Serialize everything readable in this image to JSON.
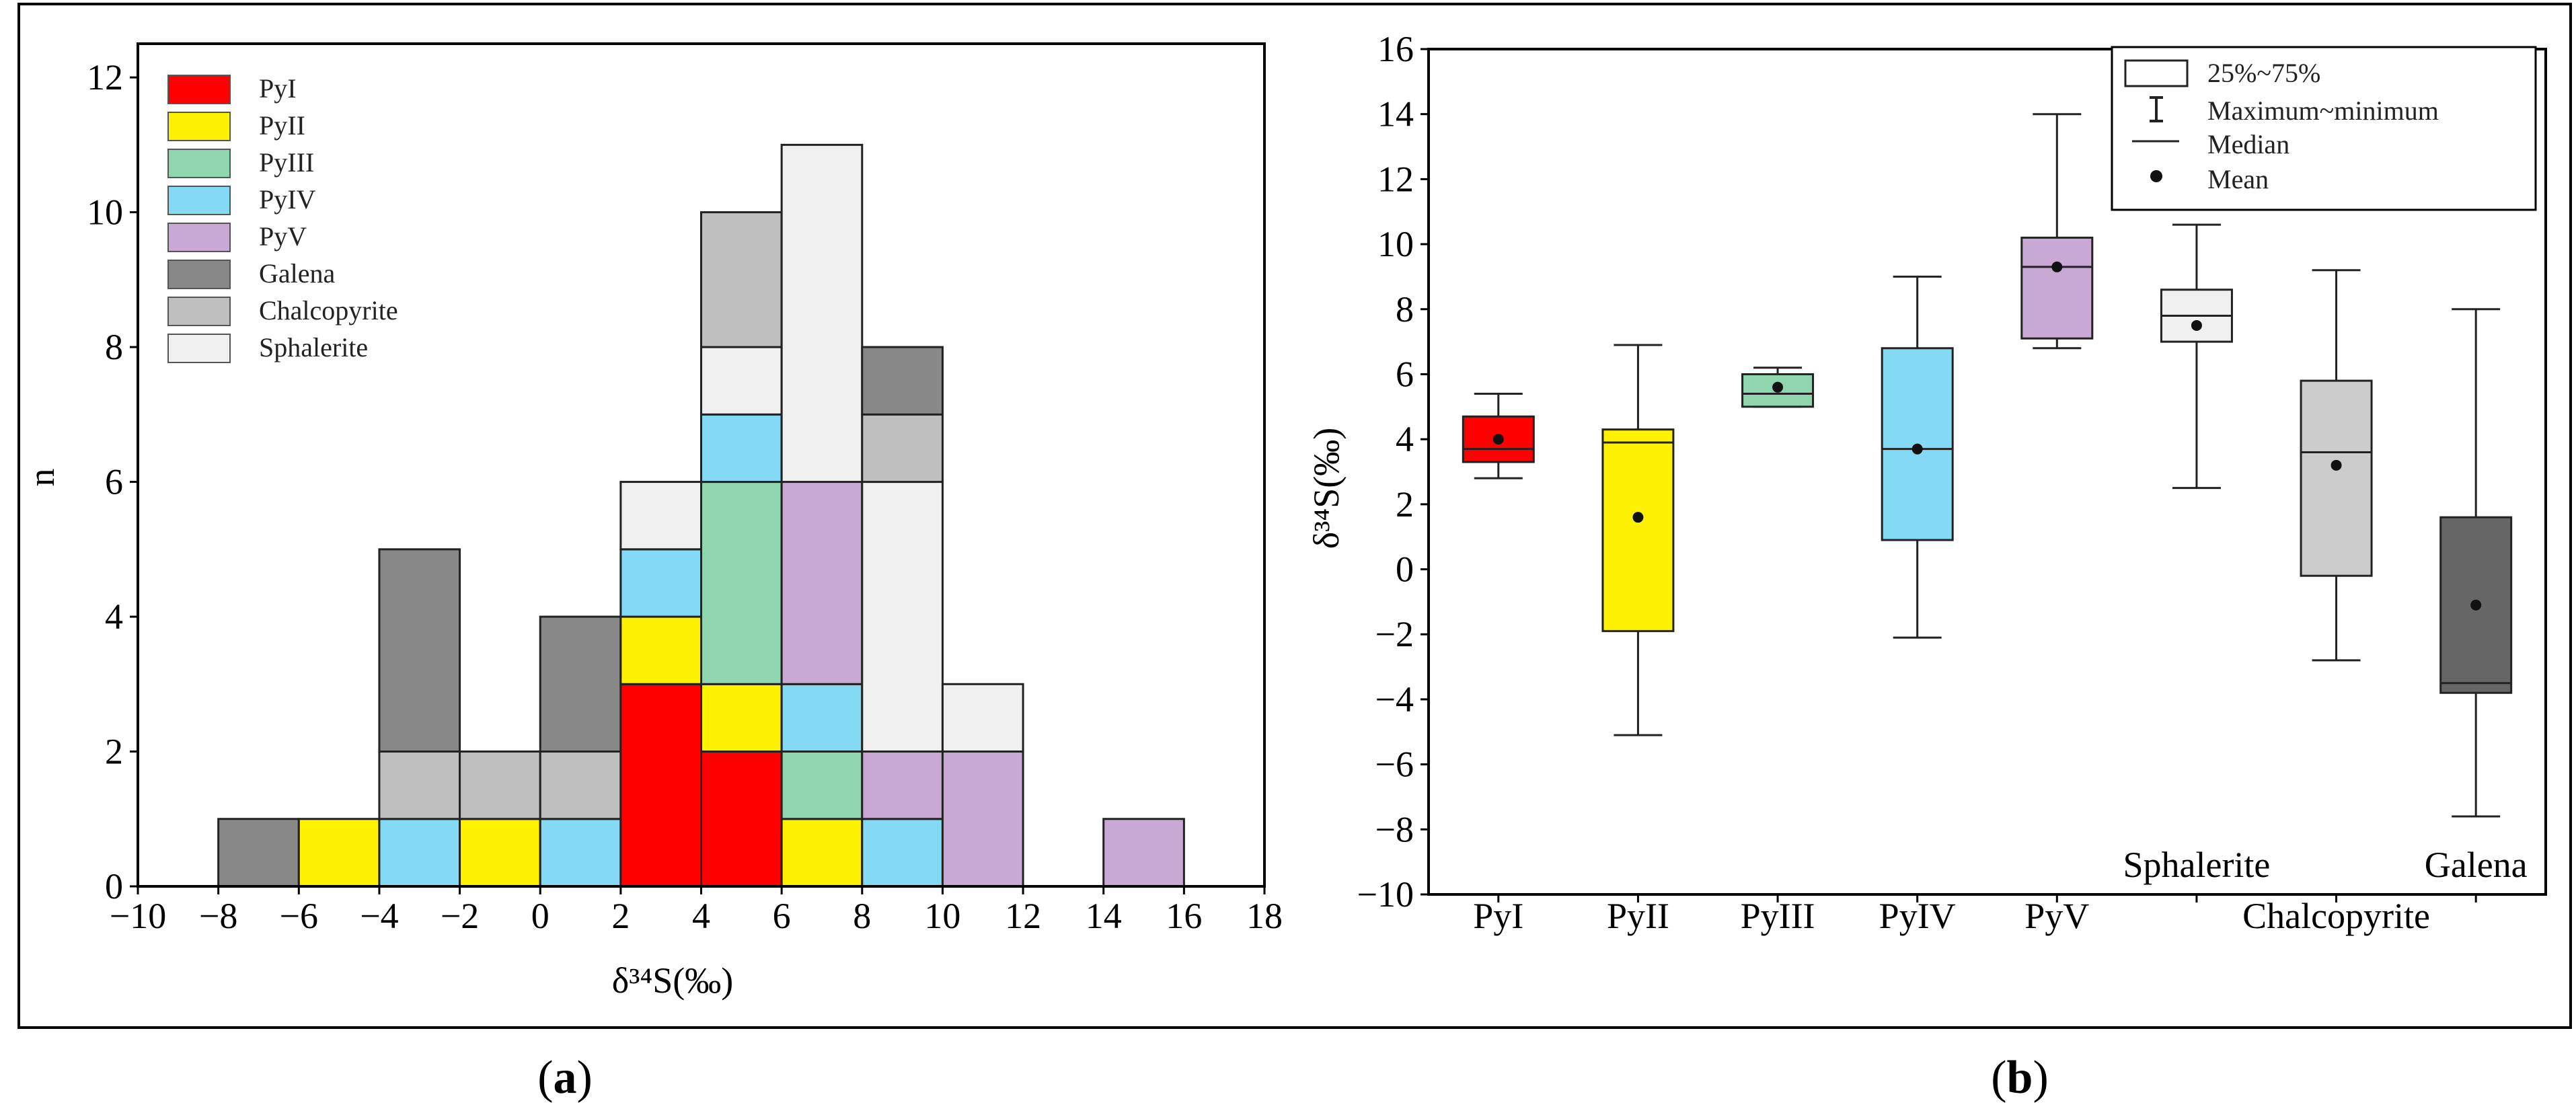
{
  "panel_labels": {
    "a": "a",
    "b": "b"
  },
  "colors": {
    "PyI": "#ff0000",
    "PyII": "#fff200",
    "PyIII": "#8fd6ae",
    "PyIV": "#84d9f5",
    "PyV": "#c9a8d4",
    "Galena": "#888888",
    "Chalcopyrite": "#bfbfbf",
    "Sphalerite": "#f0f0f0",
    "Galena_box": "#666666",
    "Chalcopyrite_box": "#cccccc",
    "Sphalerite_box": "#f0f0f0"
  },
  "chart_data": [
    {
      "type": "bar",
      "subtype": "stacked-histogram",
      "title": "",
      "xlabel": "δ³⁴S(‰)",
      "ylabel": "n",
      "xlim": [
        -10,
        18
      ],
      "ylim": [
        0,
        12.5
      ],
      "xticks": [
        -10,
        -8,
        -6,
        -4,
        -2,
        0,
        2,
        4,
        6,
        8,
        10,
        12,
        14,
        16,
        18
      ],
      "yticks": [
        0,
        2,
        4,
        6,
        8,
        10,
        12
      ],
      "legend_position": "top-left",
      "legend": [
        "PyI",
        "PyII",
        "PyIII",
        "PyIV",
        "PyV",
        "Galena",
        "Chalcopyrite",
        "Sphalerite"
      ],
      "bins": [
        {
          "x0": -8,
          "x1": -6,
          "stack": [
            {
              "cat": "Galena",
              "n": 1
            }
          ]
        },
        {
          "x0": -6,
          "x1": -4,
          "stack": [
            {
              "cat": "PyII",
              "n": 1
            }
          ]
        },
        {
          "x0": -4,
          "x1": -2,
          "stack": [
            {
              "cat": "PyIV",
              "n": 1
            },
            {
              "cat": "Chalcopyrite",
              "n": 1
            },
            {
              "cat": "Galena",
              "n": 3
            }
          ]
        },
        {
          "x0": -2,
          "x1": 0,
          "stack": [
            {
              "cat": "PyII",
              "n": 1
            },
            {
              "cat": "Chalcopyrite",
              "n": 1
            }
          ]
        },
        {
          "x0": 0,
          "x1": 2,
          "stack": [
            {
              "cat": "PyIV",
              "n": 1
            },
            {
              "cat": "Chalcopyrite",
              "n": 1
            },
            {
              "cat": "Galena",
              "n": 2
            }
          ]
        },
        {
          "x0": 2,
          "x1": 4,
          "stack": [
            {
              "cat": "PyI",
              "n": 3
            },
            {
              "cat": "PyII",
              "n": 1
            },
            {
              "cat": "PyIV",
              "n": 1
            },
            {
              "cat": "Sphalerite",
              "n": 1
            }
          ]
        },
        {
          "x0": 4,
          "x1": 6,
          "stack": [
            {
              "cat": "PyI",
              "n": 2
            },
            {
              "cat": "PyII",
              "n": 1
            },
            {
              "cat": "PyIII",
              "n": 3
            },
            {
              "cat": "PyIV",
              "n": 1
            },
            {
              "cat": "Sphalerite",
              "n": 1
            },
            {
              "cat": "Chalcopyrite",
              "n": 2
            }
          ]
        },
        {
          "x0": 6,
          "x1": 8,
          "stack": [
            {
              "cat": "PyII",
              "n": 1
            },
            {
              "cat": "PyIII",
              "n": 1
            },
            {
              "cat": "PyIV",
              "n": 1
            },
            {
              "cat": "PyV",
              "n": 3
            },
            {
              "cat": "Sphalerite",
              "n": 5
            }
          ]
        },
        {
          "x0": 8,
          "x1": 10,
          "stack": [
            {
              "cat": "PyIV",
              "n": 1
            },
            {
              "cat": "PyV",
              "n": 1
            },
            {
              "cat": "Sphalerite",
              "n": 4
            },
            {
              "cat": "Chalcopyrite",
              "n": 1
            },
            {
              "cat": "Galena",
              "n": 1
            }
          ]
        },
        {
          "x0": 10,
          "x1": 12,
          "stack": [
            {
              "cat": "PyV",
              "n": 2
            },
            {
              "cat": "Sphalerite",
              "n": 1
            }
          ]
        },
        {
          "x0": 14,
          "x1": 16,
          "stack": [
            {
              "cat": "PyV",
              "n": 1
            }
          ]
        }
      ]
    },
    {
      "type": "box",
      "title": "",
      "xlabel": "",
      "ylabel": "δ³⁴S(‰)",
      "ylim": [
        -10,
        16
      ],
      "yticks": [
        -10,
        -8,
        -6,
        -4,
        -2,
        0,
        2,
        4,
        6,
        8,
        10,
        12,
        14,
        16
      ],
      "legend_position": "top-right",
      "legend": [
        "25%~75%",
        "Maximum~minimum",
        "Median",
        "Mean"
      ],
      "boxes": [
        {
          "name": "PyI",
          "label_pos": "bottom",
          "min": 2.8,
          "q1": 3.3,
          "median": 3.7,
          "q3": 4.7,
          "max": 5.4,
          "mean": 4.0,
          "color": "#ff0000"
        },
        {
          "name": "PyII",
          "label_pos": "bottom",
          "min": -5.1,
          "q1": -1.9,
          "median": 3.9,
          "q3": 4.3,
          "max": 6.9,
          "mean": 1.6,
          "color": "#fff200"
        },
        {
          "name": "PyIII",
          "label_pos": "bottom",
          "min": 5.0,
          "q1": 5.0,
          "median": 5.4,
          "q3": 6.0,
          "max": 6.2,
          "mean": 5.6,
          "color": "#8fd6ae"
        },
        {
          "name": "PyIV",
          "label_pos": "bottom",
          "min": -2.1,
          "q1": 0.9,
          "median": 3.7,
          "q3": 6.8,
          "max": 9.0,
          "mean": 3.7,
          "color": "#84d9f5"
        },
        {
          "name": "PyV",
          "label_pos": "bottom",
          "min": 6.8,
          "q1": 7.1,
          "median": 9.3,
          "q3": 10.2,
          "max": 14.0,
          "mean": 9.3,
          "color": "#c9a8d4"
        },
        {
          "name": "Sphalerite",
          "label_pos": "inside",
          "min": 2.5,
          "q1": 7.0,
          "median": 7.8,
          "q3": 8.6,
          "max": 10.6,
          "mean": 7.5,
          "color": "#f0f0f0"
        },
        {
          "name": "Chalcopyrite",
          "label_pos": "bottom",
          "min": -2.8,
          "q1": -0.2,
          "median": 3.6,
          "q3": 5.8,
          "max": 9.2,
          "mean": 3.2,
          "color": "#cccccc"
        },
        {
          "name": "Galena",
          "label_pos": "inside",
          "min": -7.6,
          "q1": -3.8,
          "median": -3.5,
          "q3": 1.6,
          "max": 8.0,
          "mean": -1.1,
          "color": "#666666"
        }
      ]
    }
  ]
}
